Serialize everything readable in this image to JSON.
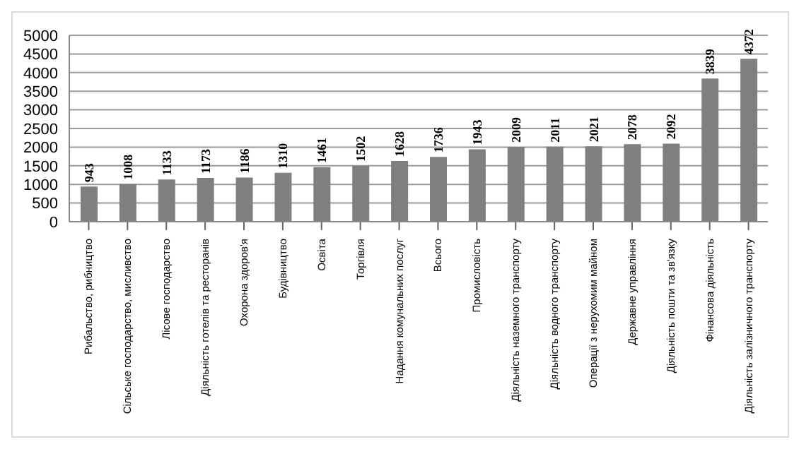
{
  "chart_data": {
    "type": "bar",
    "categories": [
      "Рибальство, рибництво",
      "Сільське господарство, мисливство",
      "Лісове господарство",
      "Діяльність готелів та ресторанів",
      "Охорона здоров'я",
      "Будівництво",
      "Освіта",
      "Торгівля",
      "Надання комунальних послуг",
      "Всього",
      "Промисловість",
      "Діяльність наземного транспорту",
      "Діяльність водного транспорту",
      "Операції з нерухомим майном",
      "Державне управління",
      "Діяльність пошти та зв'язку",
      "Фінансова діяльність",
      "Діяльність залізничного транспорту"
    ],
    "values": [
      943,
      1008,
      1133,
      1173,
      1186,
      1310,
      1461,
      1502,
      1628,
      1736,
      1943,
      2009,
      2011,
      2021,
      2078,
      2092,
      3839,
      4372
    ],
    "color": "#7f7f7f",
    "ylim": [
      0,
      5000
    ],
    "yticks": [
      0,
      500,
      1000,
      1500,
      2000,
      2500,
      3000,
      3500,
      4000,
      4500,
      5000
    ],
    "grid": "y",
    "data_labels": true
  }
}
